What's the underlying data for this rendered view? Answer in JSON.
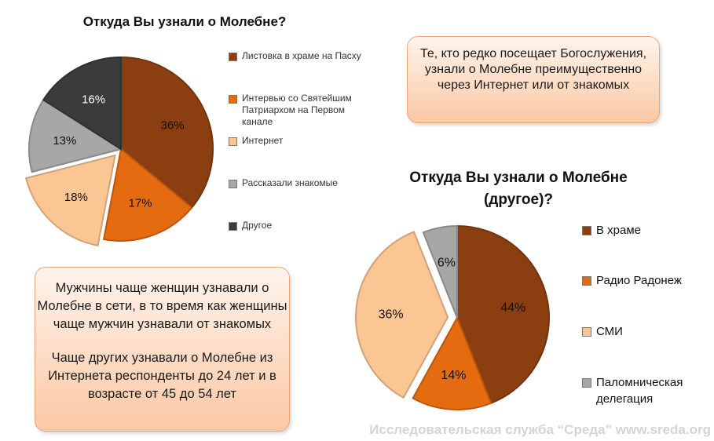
{
  "chart_data": [
    {
      "type": "pie",
      "title": "Откуда Вы узнали о Молебне?",
      "categories": [
        "Листовка в храме на Пасху",
        "Интервью со Святейшим Патриархом на Первом канале",
        "Интернет",
        "Рассказали знакомые",
        "Другое"
      ],
      "values": [
        36,
        17,
        18,
        13,
        16
      ],
      "labels": [
        "36%",
        "17%",
        "18%",
        "13%",
        "16%"
      ],
      "colors": [
        "#8b3f11",
        "#e46b10",
        "#fcc594",
        "#a7a7a7",
        "#3b3b3b"
      ],
      "exploded": "Интернет",
      "legend": "right"
    },
    {
      "type": "pie",
      "title": "Откуда Вы узнали о Молебне (другое)?",
      "categories": [
        "В храме",
        "Радио Радонеж",
        "СМИ",
        "Паломническая делегация"
      ],
      "values": [
        44,
        14,
        36,
        6
      ],
      "labels": [
        "44%",
        "14%",
        "36%",
        "6%"
      ],
      "colors": [
        "#8b3f11",
        "#e46b10",
        "#fcc594",
        "#a7a7a7"
      ],
      "exploded": "СМИ",
      "legend": "right"
    }
  ],
  "callouts": {
    "top_right": "Те, кто редко посещает Богослужения, узнали о Молебне преимущественно через Интернет или от знакомых",
    "bottom_left_p1": "Мужчины чаще женщин узнавали о Молебне в сети, в то время как женщины чаще мужчин узнавали от знакомых",
    "bottom_left_p2": "Чаще других узнавали о Молебне из Интернета респонденты до 24 лет и в возрасте от 45 до 54 лет"
  },
  "watermark": "Исследовательская служба “Среда” www.sreda.org"
}
